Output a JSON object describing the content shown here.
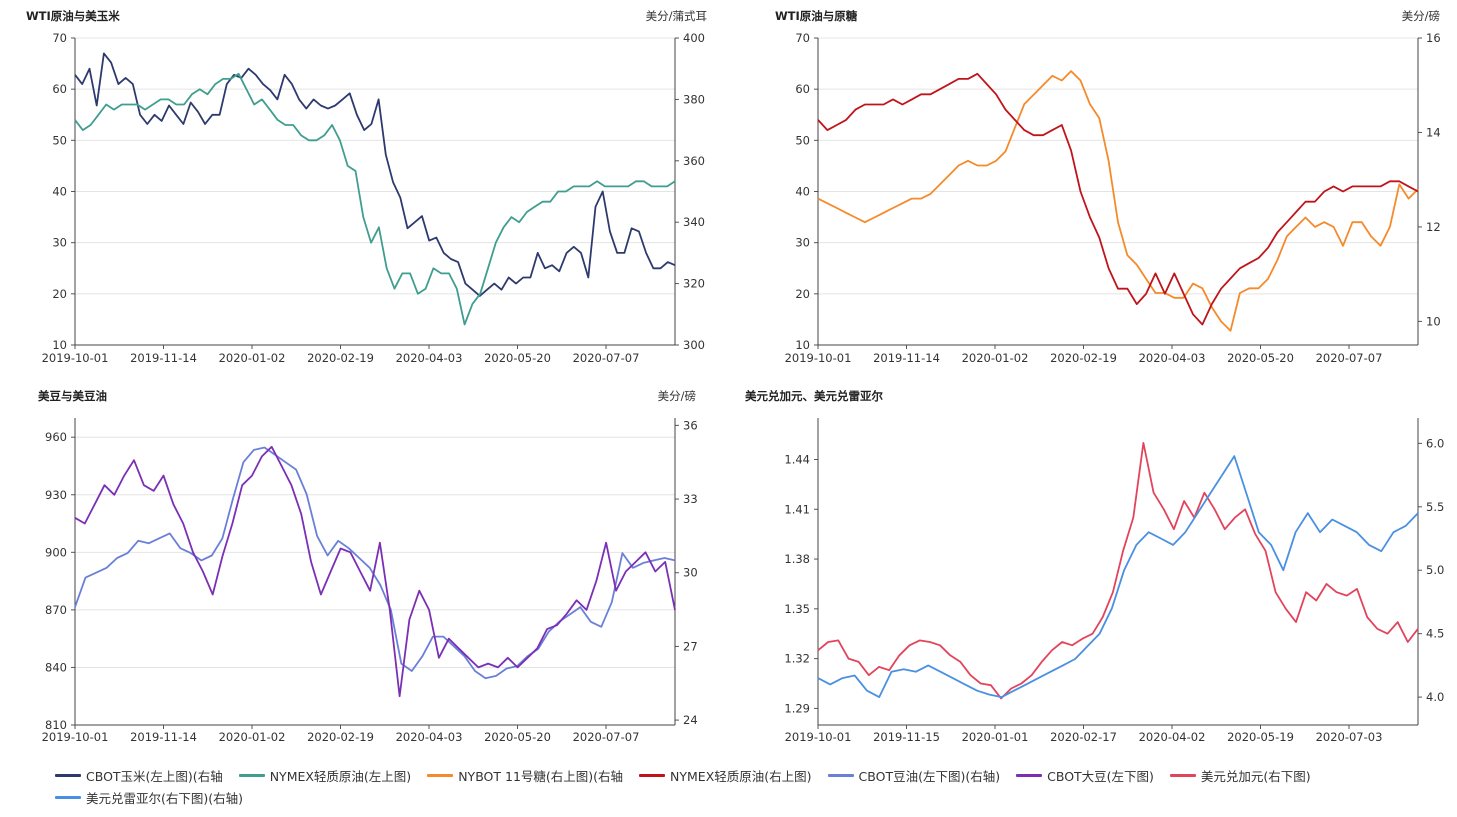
{
  "legend": [
    {
      "label": "CBOT玉米(左上图)(右轴",
      "color": "#2e3a6e"
    },
    {
      "label": "NYMEX轻质原油(左上图)",
      "color": "#3f9e8f"
    },
    {
      "label": "NYBOT 11号糖(右上图)(右轴",
      "color": "#f58a2a"
    },
    {
      "label": "NYMEX轻质原油(右上图)",
      "color": "#c0141b"
    },
    {
      "label": "CBOT豆油(左下图)(右轴)",
      "color": "#6a80d8"
    },
    {
      "label": "CBOT大豆(左下图)",
      "color": "#7b2fb5"
    },
    {
      "label": "美元兑加元(右下图)",
      "color": "#e2445c"
    },
    {
      "label": "美元兑雷亚尔(右下图)(右轴)",
      "color": "#4a90e2"
    }
  ],
  "chart_data": [
    {
      "type": "line",
      "title": "WTI原油与美玉米",
      "right_unit": "美分/蒲式耳",
      "x_ticks": [
        "2019-10-01",
        "2019-11-14",
        "2020-01-02",
        "2020-02-19",
        "2020-04-03",
        "2020-05-20",
        "2020-07-07"
      ],
      "ylim_left": [
        10,
        70
      ],
      "yticks_left": [
        "10",
        "20",
        "30",
        "40",
        "50",
        "60",
        "70"
      ],
      "ylim_right": [
        300,
        400
      ],
      "yticks_right": [
        "300",
        "320",
        "340",
        "360",
        "380",
        "400"
      ],
      "grid": true,
      "series": [
        {
          "name": "CBOT玉米(左上图)(右轴",
          "axis": "right",
          "color": "#2e3a6e",
          "values": [
            388,
            385,
            390,
            378,
            395,
            392,
            385,
            387,
            385,
            375,
            372,
            375,
            373,
            378,
            375,
            372,
            379,
            376,
            372,
            375,
            375,
            385,
            388,
            387,
            390,
            388,
            385,
            383,
            380,
            388,
            385,
            380,
            377,
            380,
            378,
            377,
            378,
            380,
            382,
            375,
            370,
            372,
            380,
            362,
            353,
            348,
            338,
            340,
            342,
            334,
            335,
            330,
            328,
            327,
            320,
            318,
            316,
            318,
            320,
            318,
            322,
            320,
            322,
            322,
            330,
            325,
            326,
            324,
            330,
            332,
            330,
            322,
            345,
            350,
            337,
            330,
            330,
            338,
            337,
            330,
            325,
            325,
            327,
            326
          ]
        },
        {
          "name": "NYMEX轻质原油(左上图)",
          "axis": "left",
          "color": "#3f9e8f",
          "values": [
            54,
            52,
            53,
            55,
            57,
            56,
            57,
            57,
            57,
            56,
            57,
            58,
            58,
            57,
            57,
            59,
            60,
            59,
            61,
            62,
            62,
            63,
            60,
            57,
            58,
            56,
            54,
            53,
            53,
            51,
            50,
            50,
            51,
            53,
            50,
            45,
            44,
            35,
            30,
            33,
            25,
            21,
            24,
            24,
            20,
            21,
            25,
            24,
            24,
            21,
            14,
            18,
            20,
            25,
            30,
            33,
            35,
            34,
            36,
            37,
            38,
            38,
            40,
            40,
            41,
            41,
            41,
            42,
            41,
            41,
            41,
            41,
            42,
            42,
            41,
            41,
            41,
            42
          ]
        }
      ]
    },
    {
      "type": "line",
      "title": "WTI原油与原糖",
      "right_unit": "美分/磅",
      "x_ticks": [
        "2019-10-01",
        "2019-11-14",
        "2020-01-02",
        "2020-02-19",
        "2020-04-03",
        "2020-05-20",
        "2020-07-07"
      ],
      "ylim_left": [
        10,
        70
      ],
      "yticks_left": [
        "10",
        "20",
        "30",
        "40",
        "50",
        "60",
        "70"
      ],
      "ylim_right": [
        9.5,
        16
      ],
      "yticks_right": [
        "10",
        "12",
        "14",
        "16"
      ],
      "grid": true,
      "series": [
        {
          "name": "NYBOT 11号糖(右上图)(右轴",
          "axis": "right",
          "color": "#f58a2a",
          "values": [
            12.6,
            12.5,
            12.4,
            12.3,
            12.2,
            12.1,
            12.2,
            12.3,
            12.4,
            12.5,
            12.6,
            12.6,
            12.7,
            12.9,
            13.1,
            13.3,
            13.4,
            13.3,
            13.3,
            13.4,
            13.6,
            14.1,
            14.6,
            14.8,
            15.0,
            15.2,
            15.1,
            15.3,
            15.1,
            14.6,
            14.3,
            13.4,
            12.1,
            11.4,
            11.2,
            10.9,
            10.6,
            10.6,
            10.5,
            10.5,
            10.8,
            10.7,
            10.3,
            10.0,
            9.8,
            10.6,
            10.7,
            10.7,
            10.9,
            11.3,
            11.8,
            12.0,
            12.2,
            12.0,
            12.1,
            12.0,
            11.6,
            12.1,
            12.1,
            11.8,
            11.6,
            12.0,
            12.9,
            12.6,
            12.8
          ]
        },
        {
          "name": "NYMEX轻质原油(右上图)",
          "axis": "left",
          "color": "#c0141b",
          "values": [
            54,
            52,
            53,
            54,
            56,
            57,
            57,
            57,
            58,
            57,
            58,
            59,
            59,
            60,
            61,
            62,
            62,
            63,
            61,
            59,
            56,
            54,
            52,
            51,
            51,
            52,
            53,
            48,
            40,
            35,
            31,
            25,
            21,
            21,
            18,
            20,
            24,
            20,
            24,
            20,
            16,
            14,
            18,
            21,
            23,
            25,
            26,
            27,
            29,
            32,
            34,
            36,
            38,
            38,
            40,
            41,
            40,
            41,
            41,
            41,
            41,
            42,
            42,
            41,
            40
          ]
        }
      ]
    },
    {
      "type": "line",
      "title": "美豆与美豆油",
      "right_unit": "美分/磅",
      "x_ticks": [
        "2019-10-01",
        "2019-11-14",
        "2020-01-02",
        "2020-02-19",
        "2020-04-03",
        "2020-05-20",
        "2020-07-07"
      ],
      "ylim_left": [
        810,
        970
      ],
      "yticks_left": [
        "810",
        "840",
        "870",
        "900",
        "930",
        "960"
      ],
      "ylim_right": [
        23.8,
        36.3
      ],
      "yticks_right": [
        "24",
        "27",
        "30",
        "33",
        "36"
      ],
      "grid": true,
      "series": [
        {
          "name": "CBOT豆油(左下图)(右轴)",
          "axis": "right",
          "color": "#6a80d8",
          "values": [
            28.6,
            29.8,
            30.0,
            30.2,
            30.6,
            30.8,
            31.3,
            31.2,
            31.4,
            31.6,
            31.0,
            30.8,
            30.5,
            30.7,
            31.4,
            33.0,
            34.5,
            35.0,
            35.1,
            34.8,
            34.5,
            34.2,
            33.2,
            31.5,
            30.7,
            31.3,
            31.0,
            30.6,
            30.2,
            29.5,
            28.5,
            26.3,
            26.0,
            26.6,
            27.4,
            27.4,
            27.0,
            26.6,
            26.0,
            25.7,
            25.8,
            26.1,
            26.2,
            26.6,
            26.9,
            27.6,
            28.0,
            28.3,
            28.6,
            28.0,
            27.8,
            28.8,
            30.8,
            30.2,
            30.4,
            30.5,
            30.6,
            30.5
          ]
        },
        {
          "name": "CBOT大豆(左下图)",
          "axis": "left",
          "color": "#7b2fb5",
          "values": [
            918,
            915,
            925,
            935,
            930,
            940,
            948,
            935,
            932,
            940,
            925,
            915,
            900,
            890,
            878,
            898,
            915,
            935,
            940,
            950,
            955,
            945,
            935,
            920,
            895,
            878,
            890,
            902,
            900,
            890,
            880,
            905,
            870,
            825,
            865,
            880,
            870,
            845,
            855,
            850,
            845,
            840,
            842,
            840,
            845,
            840,
            845,
            850,
            860,
            862,
            868,
            875,
            870,
            885,
            905,
            880,
            890,
            895,
            900,
            890,
            895,
            870
          ]
        },
        {
          "name": "美元兑加元(右下图)",
          "axis": "left",
          "color": "#e2445c",
          "hidden": true,
          "values": []
        }
      ]
    },
    {
      "type": "line",
      "title": "美元兑加元、美元兑雷亚尔",
      "x_ticks": [
        "2019-10-01",
        "2019-11-15",
        "2020-01-01",
        "2020-02-17",
        "2020-04-02",
        "2020-05-19",
        "2020-07-03"
      ],
      "ylim_left": [
        1.28,
        1.465
      ],
      "yticks_left": [
        "1.29",
        "1.32",
        "1.35",
        "1.38",
        "1.41",
        "1.44"
      ],
      "ylim_right": [
        3.78,
        6.2
      ],
      "yticks_right": [
        "4.0",
        "4.5",
        "5.0",
        "5.5",
        "6.0"
      ],
      "grid": false,
      "series": [
        {
          "name": "美元兑加元(右下图)",
          "axis": "left",
          "color": "#e2445c",
          "values": [
            1.325,
            1.33,
            1.331,
            1.32,
            1.318,
            1.31,
            1.315,
            1.313,
            1.322,
            1.328,
            1.331,
            1.33,
            1.328,
            1.322,
            1.318,
            1.31,
            1.305,
            1.304,
            1.296,
            1.302,
            1.305,
            1.31,
            1.318,
            1.325,
            1.33,
            1.328,
            1.332,
            1.335,
            1.345,
            1.36,
            1.385,
            1.405,
            1.45,
            1.42,
            1.41,
            1.398,
            1.415,
            1.405,
            1.42,
            1.41,
            1.398,
            1.405,
            1.41,
            1.395,
            1.385,
            1.36,
            1.35,
            1.342,
            1.36,
            1.355,
            1.365,
            1.36,
            1.358,
            1.362,
            1.345,
            1.338,
            1.335,
            1.342,
            1.33,
            1.338
          ]
        },
        {
          "name": "美元兑雷亚尔(右下图)(右轴)",
          "axis": "right",
          "color": "#4a90e2",
          "values": [
            4.15,
            4.1,
            4.15,
            4.17,
            4.05,
            4.0,
            4.2,
            4.22,
            4.2,
            4.25,
            4.2,
            4.15,
            4.1,
            4.05,
            4.02,
            4.0,
            4.05,
            4.1,
            4.15,
            4.2,
            4.25,
            4.3,
            4.4,
            4.5,
            4.7,
            5.0,
            5.2,
            5.3,
            5.25,
            5.2,
            5.3,
            5.45,
            5.6,
            5.75,
            5.9,
            5.6,
            5.3,
            5.2,
            5.0,
            5.3,
            5.45,
            5.3,
            5.4,
            5.35,
            5.3,
            5.2,
            5.15,
            5.3,
            5.35,
            5.45
          ]
        }
      ]
    }
  ]
}
